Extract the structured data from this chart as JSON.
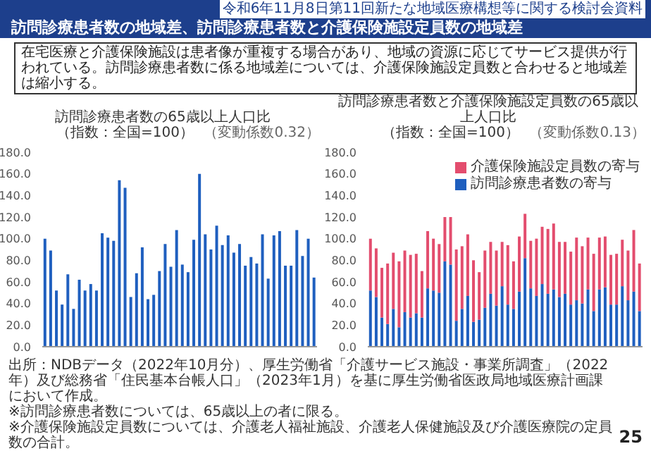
{
  "chart_data": [
    {
      "type": "bar",
      "title": "訪問診療患者数の65歳以上人口比",
      "subtitle": "（指数：全国=100）",
      "annotations": [
        "（変動係数0.32）",
        "令和6年11月8日第11回新たな地域医療構想等に関する検討会資料",
        "訪問診療患者数の地域差、訪問診療患者数と介護保険施設定員数の地域差",
        "在宅医療と介護保険施設は患者像が重複する場合があり、地域の資源に応じてサービス提供が行われている。訪問診療患者数に係る地域差については、介護保険施設定員数と合わせると地域差は縮小する。",
        "出所：NDBデータ（2022年10月分）、厚生労働省「介護サービス施設・事業所調査」（2022年）及び総務省「住民基本台帳人口」（2023年1月）を基に厚生労働省医政局地域医療計画課において作成。",
        "※訪問診療患者数については、65歳以上の者に限る。",
        "※介護保険施設定員数については、介護老人福祉施設、介護老人保健施設及び介護医療院の定員数の合計。",
        "25"
      ],
      "categories": [
        null,
        null,
        null,
        null,
        null,
        null,
        null,
        null,
        null,
        null,
        null,
        null,
        null,
        null,
        null,
        null,
        null,
        null,
        null,
        null,
        null,
        null,
        null,
        null,
        null,
        null,
        null,
        null,
        null,
        null,
        null,
        null,
        null,
        null,
        null,
        null,
        null,
        null,
        null,
        null,
        null,
        null,
        null,
        null,
        null,
        null,
        null,
        null
      ],
      "series": [
        {
          "color": "#1f5fbf",
          "values": [
            100,
            89,
            52,
            39,
            67,
            35,
            62,
            52,
            58,
            52,
            105,
            101,
            98,
            154,
            147,
            46,
            68,
            92,
            44,
            48,
            70,
            95,
            74,
            108,
            76,
            69,
            99,
            160,
            104,
            90,
            112,
            94,
            103,
            87,
            95,
            75,
            83,
            77,
            104,
            63,
            103,
            107,
            75,
            75,
            108,
            84,
            100,
            64
          ]
        }
      ],
      "ylim": [
        0,
        180
      ],
      "yticks": [
        {
          "value": 0,
          "label": "0.0"
        },
        {
          "value": 20,
          "label": "20.0"
        },
        {
          "value": 40,
          "label": "40.0"
        },
        {
          "value": 60,
          "label": "60.0"
        },
        {
          "value": 80,
          "label": "80.0"
        },
        {
          "value": 100,
          "label": "100.0"
        },
        {
          "value": 120,
          "label": "120.0"
        },
        {
          "value": 140,
          "label": "140.0"
        },
        {
          "value": 160,
          "label": "160.0"
        },
        {
          "value": 180,
          "label": "180.0"
        }
      ]
    },
    {
      "type": "bar",
      "title": "訪問診療患者数と介護保険施設定員数の65歳以上人口比",
      "subtitle": "（指数：全国=100）",
      "annotations": [
        "（変動係数0.13）"
      ],
      "categories": [
        null,
        null,
        null,
        null,
        null,
        null,
        null,
        null,
        null,
        null,
        null,
        null,
        null,
        null,
        null,
        null,
        null,
        null,
        null,
        null,
        null,
        null,
        null,
        null,
        null,
        null,
        null,
        null,
        null,
        null,
        null,
        null,
        null,
        null,
        null,
        null,
        null,
        null,
        null,
        null,
        null,
        null,
        null,
        null,
        null,
        null,
        null,
        null
      ],
      "stacked": true,
      "legend": "top right",
      "series": [
        {
          "name": "訪問診療患者数の寄与",
          "color": "#1f5fbf",
          "values": [
            52,
            46,
            27,
            21,
            35,
            18,
            32,
            27,
            31,
            27,
            54,
            52,
            50,
            79,
            76,
            24,
            35,
            47,
            23,
            25,
            36,
            49,
            38,
            56,
            39,
            35,
            51,
            82,
            54,
            47,
            58,
            49,
            53,
            46,
            49,
            39,
            43,
            40,
            53,
            33,
            53,
            55,
            39,
            39,
            56,
            43,
            51,
            33
          ]
        },
        {
          "name": "介護保険施設定員数の寄与",
          "color": "#e34d6e",
          "values": [
            48,
            45,
            46,
            56,
            52,
            61,
            57,
            58,
            55,
            43,
            53,
            48,
            45,
            41,
            44,
            66,
            58,
            57,
            57,
            44,
            53,
            48,
            51,
            41,
            55,
            44,
            51,
            41,
            44,
            53,
            53,
            60,
            61,
            51,
            48,
            49,
            58,
            53,
            48,
            53,
            48,
            47,
            46,
            47,
            43,
            46,
            57,
            44
          ]
        }
      ],
      "ylim": [
        0,
        180
      ],
      "yticks": [
        {
          "value": 0,
          "label": "0.0"
        },
        {
          "value": 20,
          "label": "20.0"
        },
        {
          "value": 40,
          "label": "40.0"
        },
        {
          "value": 60,
          "label": "60.0"
        },
        {
          "value": 80,
          "label": "80.0"
        },
        {
          "value": 100,
          "label": "100.0"
        },
        {
          "value": 120,
          "label": "120.0"
        },
        {
          "value": 140,
          "label": "140.0"
        },
        {
          "value": 160,
          "label": "160.0"
        },
        {
          "value": 180,
          "label": "180.0"
        }
      ]
    }
  ]
}
